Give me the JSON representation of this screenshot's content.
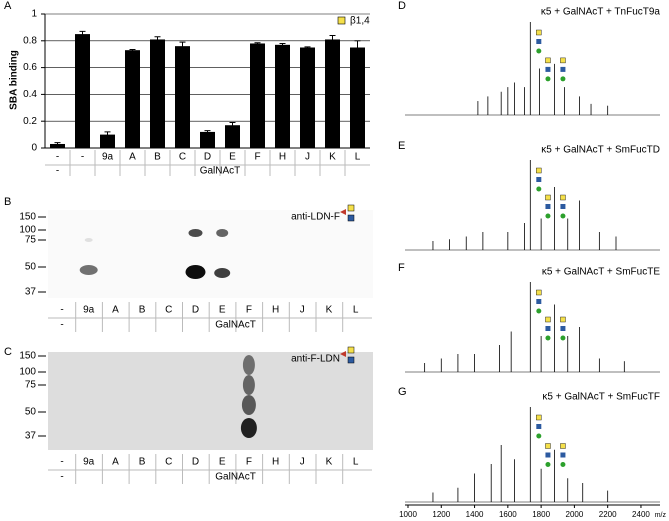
{
  "chart_data": {
    "type": "bar",
    "y_label": "SBA binding",
    "legend": "β1,4",
    "color": "#000000",
    "legend_color": "#f5e04a",
    "categories": [
      "-",
      "-",
      "9a",
      "A",
      "B",
      "C",
      "D",
      "E",
      "F",
      "H",
      "J",
      "K",
      "L"
    ],
    "values": [
      0.03,
      0.85,
      0.1,
      0.73,
      0.81,
      0.76,
      0.12,
      0.17,
      0.78,
      0.77,
      0.75,
      0.81,
      0.75
    ],
    "errors": [
      0.01,
      0.02,
      0.02,
      0.005,
      0.02,
      0.03,
      0.01,
      0.02,
      0.005,
      0.01,
      0.005,
      0.03,
      0.05
    ],
    "group_labels": [
      "-",
      "GalNAcT"
    ],
    "ylim": [
      0,
      1
    ],
    "yticks": [
      0,
      0.2,
      0.4,
      0.6,
      0.8,
      1
    ],
    "grid": true
  },
  "panel_labels": [
    "A",
    "B",
    "C",
    "D",
    "E",
    "F",
    "G"
  ],
  "blots": [
    {
      "antibody": "anti-LDN-F",
      "markers": [
        150,
        100,
        75,
        50,
        37
      ],
      "lanes": [
        "-",
        "9a",
        "A",
        "B",
        "C",
        "D",
        "E",
        "F",
        "H",
        "J",
        "K",
        "L"
      ],
      "group_labels": [
        "-",
        "GalNAcT"
      ]
    },
    {
      "antibody": "anti-F-LDN",
      "markers": [
        150,
        100,
        75,
        50,
        37
      ],
      "lanes": [
        "-",
        "9a",
        "A",
        "B",
        "C",
        "D",
        "E",
        "F",
        "H",
        "J",
        "K",
        "L"
      ],
      "group_labels": [
        "-",
        "GalNAcT"
      ]
    }
  ],
  "spectra": [
    {
      "title": "κ5 + GalNAcT + TnFucT9a"
    },
    {
      "title": "κ5 + GalNAcT + SmFucTD"
    },
    {
      "title": "κ5 + GalNAcT + SmFucTE"
    },
    {
      "title": "κ5 + GalNAcT + SmFucTF"
    }
  ],
  "spectra_axis": {
    "ticks": [
      1000,
      1200,
      1400,
      1600,
      1800,
      2000,
      2200,
      2400
    ],
    "unit": "m/z"
  }
}
